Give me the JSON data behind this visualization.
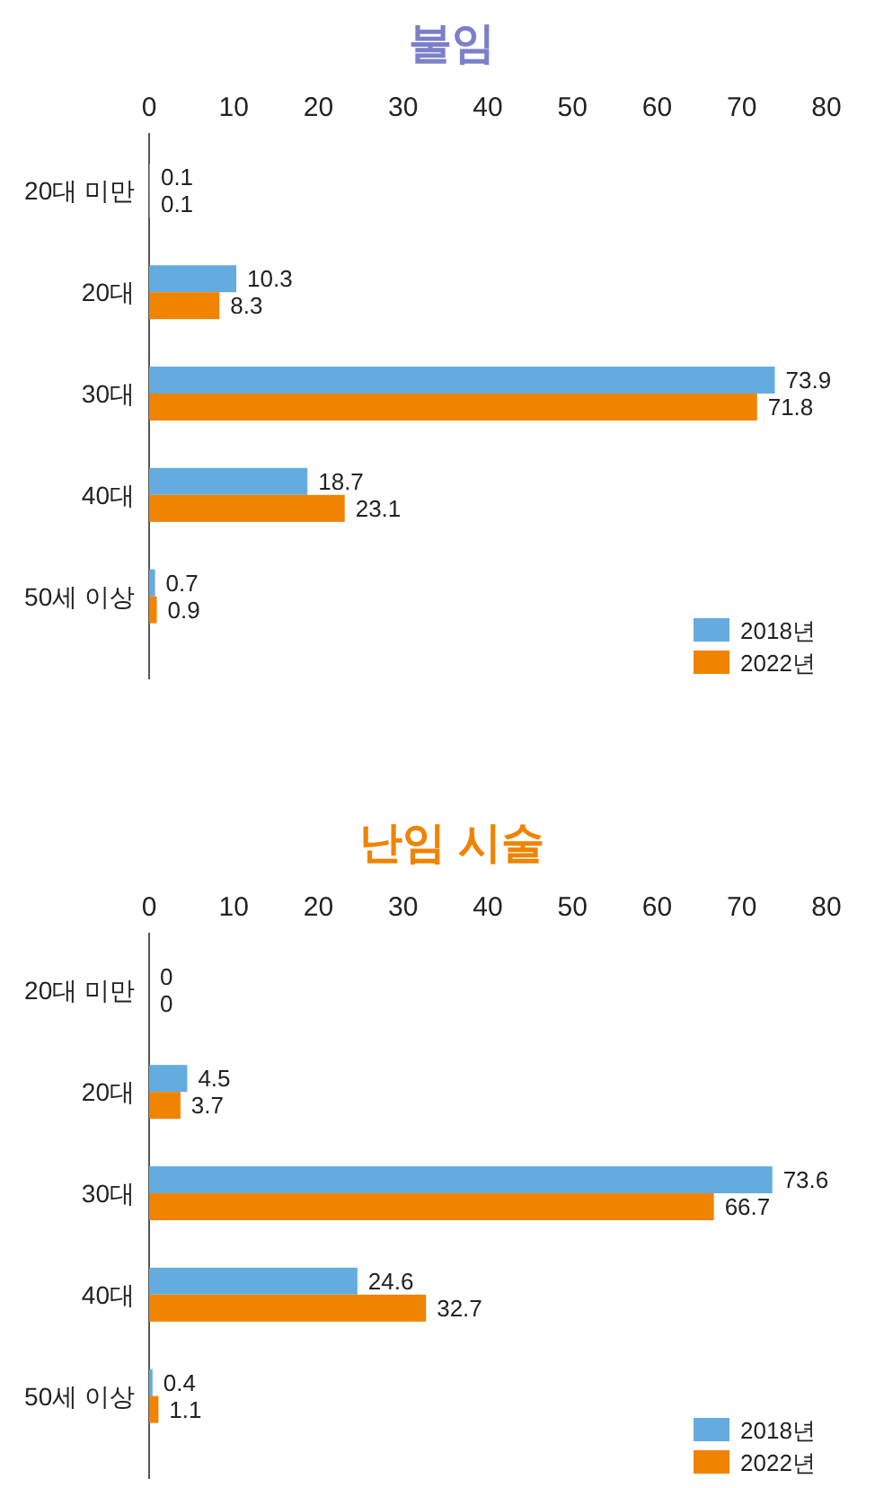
{
  "chart_data": [
    {
      "type": "bar",
      "orientation": "horizontal",
      "title": "불임",
      "categories": [
        "20대 미만",
        "20대",
        "30대",
        "40대",
        "50세 이상"
      ],
      "series": [
        {
          "name": "2018년",
          "color": "#64acdf",
          "values": [
            0.1,
            10.3,
            73.9,
            18.7,
            0.7
          ]
        },
        {
          "name": "2022년",
          "color": "#f08300",
          "values": [
            0.1,
            8.3,
            71.8,
            23.1,
            0.9
          ]
        }
      ],
      "xlim": [
        0,
        80
      ],
      "xticks": [
        0,
        10,
        20,
        30,
        40,
        50,
        60,
        70,
        80
      ],
      "data_labels": true,
      "legend": "bottom right",
      "grid": false
    },
    {
      "type": "bar",
      "orientation": "horizontal",
      "title": "난임 시술",
      "categories": [
        "20대 미만",
        "20대",
        "30대",
        "40대",
        "50세 이상"
      ],
      "series": [
        {
          "name": "2018년",
          "color": "#64acdf",
          "values": [
            0,
            4.5,
            73.6,
            24.6,
            0.4
          ]
        },
        {
          "name": "2022년",
          "color": "#f08300",
          "values": [
            0,
            3.7,
            66.7,
            32.7,
            1.1
          ]
        }
      ],
      "xlim": [
        0,
        80
      ],
      "xticks": [
        0,
        10,
        20,
        30,
        40,
        50,
        60,
        70,
        80
      ],
      "data_labels": true,
      "legend": "bottom right",
      "grid": false
    }
  ]
}
